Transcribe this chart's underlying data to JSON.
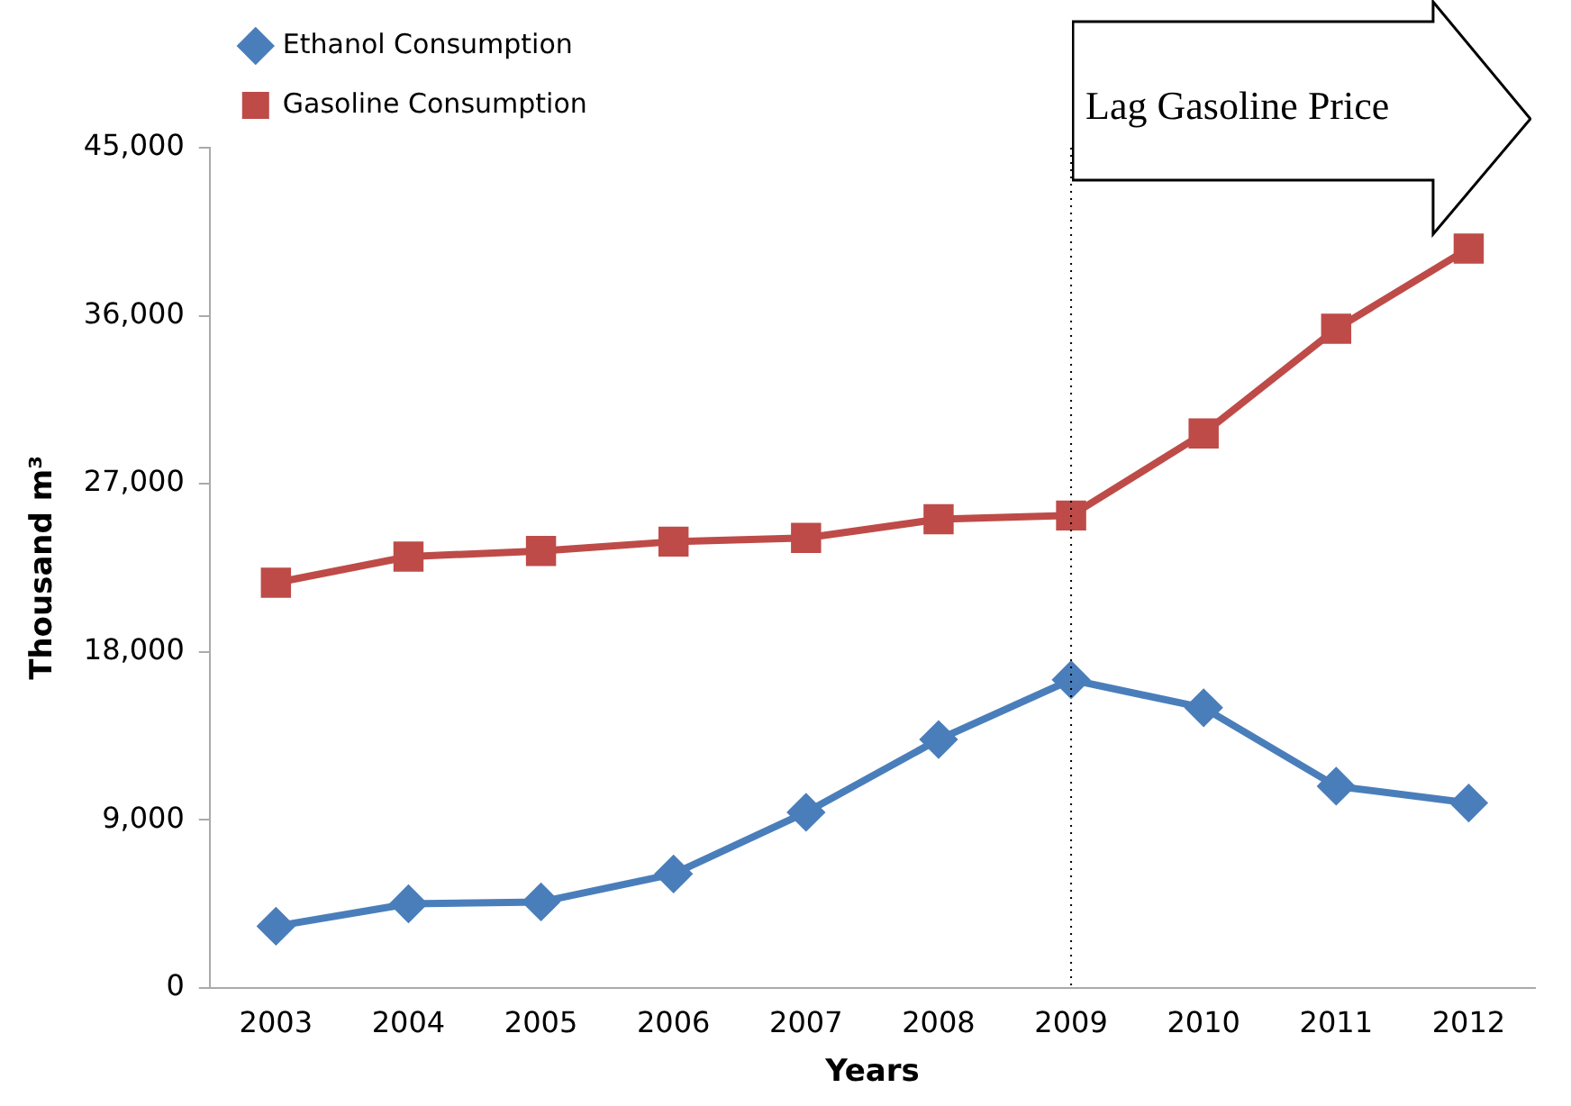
{
  "chart_data": {
    "type": "line",
    "xlabel": "Years",
    "ylabel": "Thousand m³",
    "categories": [
      "2003",
      "2004",
      "2005",
      "2006",
      "2007",
      "2008",
      "2009",
      "2010",
      "2011",
      "2012"
    ],
    "series": [
      {
        "name": "Ethanol Consumption",
        "color": "#4a7ebb",
        "marker": "diamond",
        "values": [
          3300,
          4500,
          4600,
          6100,
          9400,
          13300,
          16500,
          15000,
          10800,
          9900
        ]
      },
      {
        "name": "Gasoline Consumption",
        "color": "#be4b48",
        "marker": "square",
        "values": [
          21700,
          23100,
          23400,
          23900,
          24100,
          25100,
          25300,
          29700,
          35300,
          39600
        ]
      }
    ],
    "ylim": [
      0,
      45000
    ],
    "yticks": [
      {
        "value": 0,
        "label": "0"
      },
      {
        "value": 9000,
        "label": "9,000"
      },
      {
        "value": 18000,
        "label": "18,000"
      },
      {
        "value": 27000,
        "label": "27,000"
      },
      {
        "value": 36000,
        "label": "36,000"
      },
      {
        "value": 45000,
        "label": "45,000"
      }
    ],
    "ref_lines": [
      {
        "axis": "x",
        "value": "2009",
        "line_style": "dotted",
        "color": "#000000"
      }
    ],
    "annotations": [
      "Lag Gasoline Price"
    ],
    "grid": false,
    "legend": "top left",
    "line_style": "solid"
  }
}
